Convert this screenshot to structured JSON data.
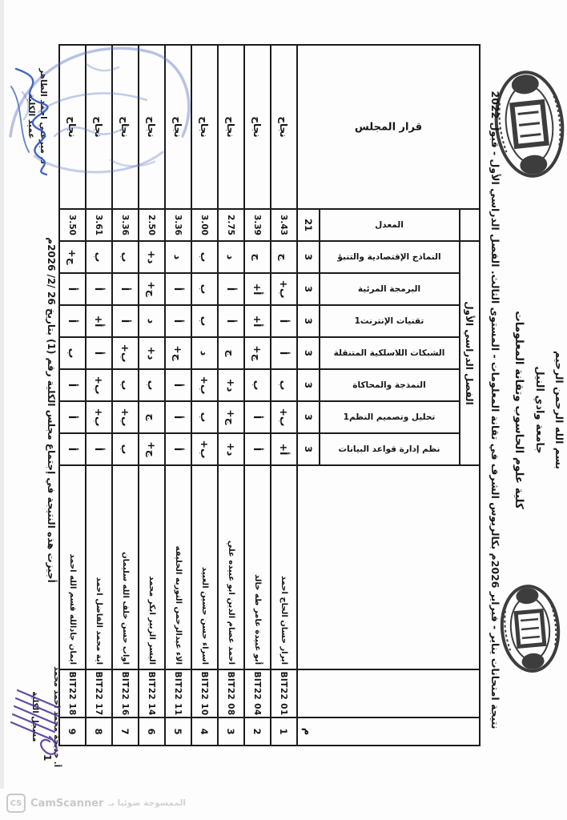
{
  "header": {
    "bismillah": "بسم الله الرحمن الرحيم",
    "university": "جامعة وادي النيل",
    "college": "كلية علوم الحاسوب وتقانة المعلومات",
    "result_title": "نتيجة امتحانات يناير - فبراير 2026م بكالريوس الشرف في تقانة المعلومات - المستوى الثالث. الفصل الدراسي الأول - قبول 2022"
  },
  "table": {
    "no_label": "م",
    "semester_label": "الفصل الدراسي الأول",
    "gpa_label": "المعدل",
    "gpa_total_hours": "21",
    "decision_label": "قرار المجلس",
    "courses": [
      {
        "name": "نظم إدارة قواعد البيانات",
        "hours": "3"
      },
      {
        "name": "تحليل وتصميم النظم1",
        "hours": "3"
      },
      {
        "name": "النمذجة والمحاكاة",
        "hours": "3"
      },
      {
        "name": "الشبكات اللاسلكية المتنقلة",
        "hours": "3"
      },
      {
        "name": "تقنيات الإنترنت1",
        "hours": "3"
      },
      {
        "name": "البرمجة المرئية",
        "hours": "3"
      },
      {
        "name": "النماذج الإقتصادية والتنبؤ",
        "hours": "3"
      }
    ],
    "students": [
      {
        "no": "1",
        "id": "BIT22 01",
        "name": "ابرار حسان الحاج احمد",
        "grades": [
          "أ+",
          "ب+",
          "ب",
          "أ",
          "أ",
          "ب+",
          "ج"
        ],
        "gpa": "3.43",
        "decision": "نجاح"
      },
      {
        "no": "2",
        "id": "BIT22 04",
        "name": "أبو عبيدة عامر طه خالد",
        "grades": [
          "أ",
          "أ",
          "ب",
          "ج+",
          "أ+",
          "أ+",
          "ج"
        ],
        "gpa": "3.39",
        "decision": "نجاح"
      },
      {
        "no": "3",
        "id": "BIT22 08",
        "name": "احمد عصام الدين ابو عبيده علي",
        "grades": [
          "د+",
          "ج+",
          "د+",
          "ج",
          "أ",
          "أ",
          "د"
        ],
        "gpa": "2.75",
        "decision": "نجاح"
      },
      {
        "no": "4",
        "id": "BIT22 10",
        "name": "اسراء حسن حسين العبيد",
        "grades": [
          "ب+",
          "ب",
          "ب+",
          "د",
          "ب",
          "ب",
          "ب"
        ],
        "gpa": "3.00",
        "decision": "نجاح"
      },
      {
        "no": "5",
        "id": "BIT22 11",
        "name": "الاء عبدالرحمن التوربه الخليفه",
        "grades": [
          "أ",
          "أ",
          "أ",
          "ج+",
          "أ",
          "أ",
          "د"
        ],
        "gpa": "3.36",
        "decision": "نجاح"
      },
      {
        "no": "6",
        "id": "BIT22 14",
        "name": "اليسر الزبير ابكر محمد",
        "grades": [
          "ج+",
          "ج",
          "ب",
          "د+",
          "د",
          "ج+",
          "د+"
        ],
        "gpa": "2.50",
        "decision": "نجاح"
      },
      {
        "no": "7",
        "id": "BIT22 16",
        "name": "اواب حسن خلف الله سليمان",
        "grades": [
          "ب",
          "ب+",
          "ب",
          "ب+",
          "أ",
          "أ",
          "ب"
        ],
        "gpa": "3.36",
        "decision": "نجاح"
      },
      {
        "no": "8",
        "id": "BIT22 17",
        "name": "اية محمد الفاضل احمد",
        "grades": [
          "أ",
          "ب+",
          "ب+",
          "أ",
          "أ+",
          "أ",
          "ب"
        ],
        "gpa": "3.61",
        "decision": "نجاح"
      },
      {
        "no": "9",
        "id": "BIT22 18",
        "name": "ايمان جادالله قسم الله احمد",
        "grades": [
          "أ",
          "أ",
          "أ",
          "ب",
          "أ",
          "أ",
          "ج+"
        ],
        "gpa": "3.50",
        "decision": "نجاح"
      }
    ]
  },
  "footer": {
    "approval": "أجيزت هذه النتيجة في إجتماع مجلس الكلية رقم (1) بتاريخ 26 /2/ 2026م",
    "page_number": "1",
    "dean_name": "د. ميرغني احمد الطاهر",
    "dean_title": "عميد الكلية",
    "registrar_name": "أ. خديجة محمد احمد محمد",
    "registrar_title": "مسجل الكلية"
  },
  "watermark": {
    "badge": "CS",
    "name": "CamScanner",
    "arabic": "الممسوحة ضوئيا بـ"
  },
  "colors": {
    "ink": "#1c1c1c",
    "stamp_blue": "#4f6ac2",
    "signature_blue": "#2f55b8",
    "signature_purple": "#53399a",
    "watermark_gray": "#c9c9c9"
  }
}
